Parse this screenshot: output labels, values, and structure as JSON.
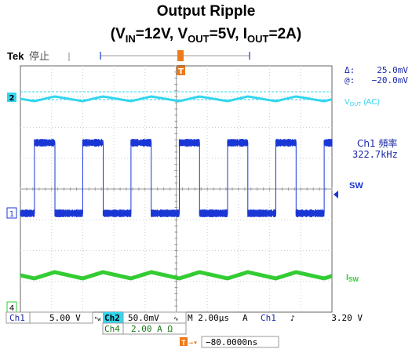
{
  "title_line1": "Output Ripple",
  "title_line2": {
    "open": "(V",
    "vin_sub": "IN",
    "vin_val": "=12V, V",
    "vout_sub": "OUT",
    "vout_val": "=5V, I",
    "iout_sub": "OUT",
    "iout_val": "=2A)"
  },
  "header": {
    "brand": "Tek",
    "state": "停止"
  },
  "colors": {
    "ch2": "#33d6ee",
    "ch1": "#1a37d6",
    "ch4": "#33cc33",
    "label_ch1": "#1a2aa8",
    "grid": "#cccccc",
    "border": "#666666",
    "trigger": "#ee7a1a"
  },
  "measure": {
    "delta_label": "Δ:",
    "delta_value": "25.0mV",
    "at_label": "@:",
    "at_value": "−20.0mV"
  },
  "labels": {
    "ch2_marker": "2",
    "ch1_marker": "1",
    "ch4_marker": "4",
    "trigger_marker": "T",
    "vout_ac": "V",
    "vout_ac_sub": "OUT",
    "vout_ac_tail": " (AC)",
    "sw": "SW",
    "isw": "I",
    "isw_sub": "SW",
    "freq_label": "Ch1 頻率",
    "freq_value": "322.7kHz"
  },
  "status": {
    "ch1_name": "Ch1",
    "ch1_scale": "5.00 V",
    "ch2_name": "Ch2",
    "ch2_scale": "50.0mV",
    "ch4_name": "Ch4",
    "ch4_scale": "2.00 A Ω",
    "timebase": "M 2.00µs",
    "trig_mode": "A",
    "trig_src": "Ch1",
    "trig_slope": "♪",
    "trig_level": "3.20 V",
    "ch2_bw_mark": "ᴮw",
    "ch2_ac_mark": "∿",
    "trigger_position": "−80.0000ns"
  },
  "chart_data": {
    "type": "line",
    "title": "Output Ripple",
    "subtitle": "(VIN=12V, VOUT=5V, IOUT=2A)",
    "x": {
      "unit": "µs",
      "per_division": 2.0,
      "divisions": 10,
      "range": [
        0,
        20
      ]
    },
    "grid": true,
    "series": [
      {
        "name": "VOUT (AC)",
        "channel": "Ch2",
        "scale_per_division": "50.0mV",
        "waveform": "triangle ripple",
        "frequency_kHz": 322.7,
        "peak_to_peak_mV": 25.0,
        "center_mV": -20.0
      },
      {
        "name": "SW",
        "channel": "Ch1",
        "scale_per_division": "5.00 V",
        "waveform": "square",
        "frequency_kHz": 322.7,
        "duty_cycle": 0.42,
        "low_V": 0,
        "high_V": 12
      },
      {
        "name": "ISW",
        "channel": "Ch4",
        "scale_per_division": "2.00 A",
        "waveform": "triangle",
        "frequency_kHz": 322.7,
        "peak_to_peak_A": 0.6,
        "average_A": 2.0
      }
    ]
  }
}
